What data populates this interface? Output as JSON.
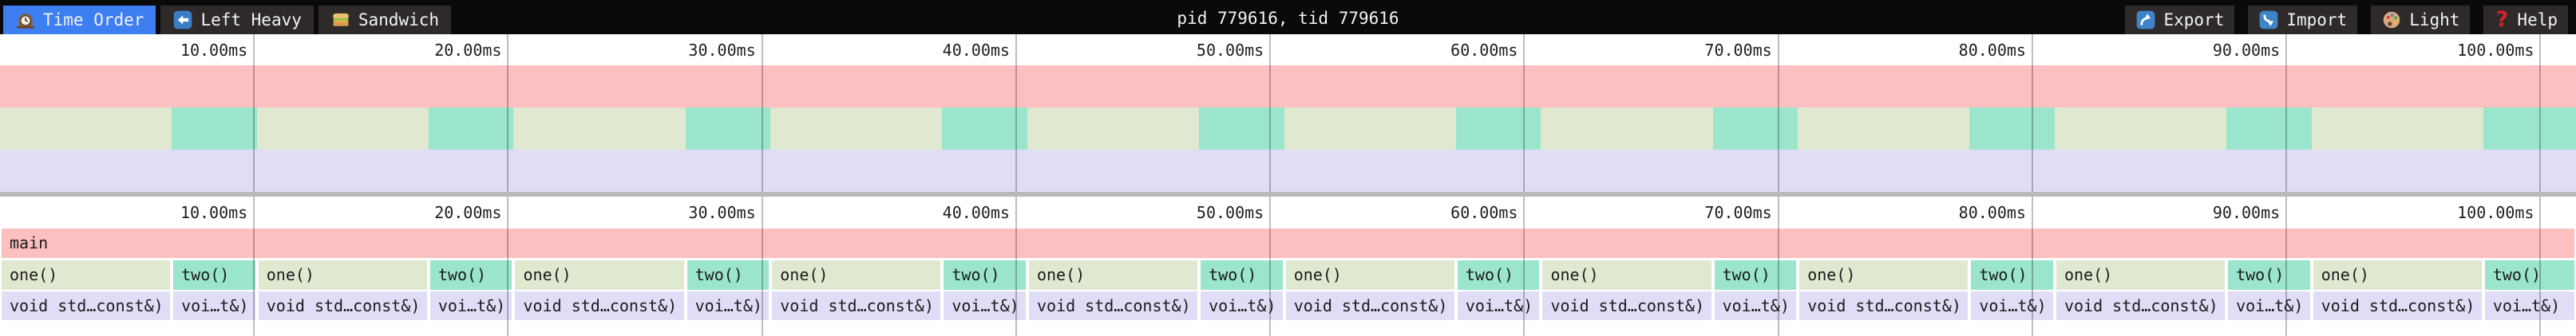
{
  "topbar": {
    "title": "pid 779616, tid 779616",
    "tabs": [
      {
        "label": "Time Order",
        "icon": "mantel-clock",
        "active": true
      },
      {
        "label": "Left Heavy",
        "icon": "left-arrow",
        "active": false
      },
      {
        "label": "Sandwich",
        "icon": "sandwich",
        "active": false
      }
    ],
    "actions": [
      {
        "label": "Export",
        "icon": "arrow-curving-up"
      },
      {
        "label": "Import",
        "icon": "arrow-curving-down"
      },
      {
        "label": "Light",
        "icon": "palette"
      },
      {
        "label": "Help",
        "icon": "question-mark"
      }
    ]
  },
  "colors": {
    "accent_blue": "#3d7ef0",
    "topbar_bg": "#0a0a0a",
    "button_bg": "#2e2a2a",
    "frame_main": "#fdc0c0",
    "frame_one": "#e0e9d0",
    "frame_two": "#9ae5cb",
    "frame_sleep": "#e0def7",
    "divider": "#b9b9b9",
    "gridline": "rgba(0,0,0,0.25)"
  },
  "chart_data": {
    "type": "flamegraph",
    "unit": "ms",
    "total_ms": 101.4,
    "ticks": [
      {
        "ms": 10,
        "label": "10.00ms"
      },
      {
        "ms": 20,
        "label": "20.00ms"
      },
      {
        "ms": 30,
        "label": "30.00ms"
      },
      {
        "ms": 40,
        "label": "40.00ms"
      },
      {
        "ms": 50,
        "label": "50.00ms"
      },
      {
        "ms": 60,
        "label": "60.00ms"
      },
      {
        "ms": 70,
        "label": "70.00ms"
      },
      {
        "ms": 80,
        "label": "80.00ms"
      },
      {
        "ms": 90,
        "label": "90.00ms"
      },
      {
        "ms": 100,
        "label": "100.00ms"
      }
    ],
    "levels": [
      {
        "depth": 0,
        "frames": [
          {
            "label": "main",
            "start_ms": 0,
            "end_ms": 101.4,
            "color_key": "frame_main"
          }
        ]
      },
      {
        "depth": 1,
        "frames": [
          {
            "label": "one()",
            "start_ms": 0,
            "end_ms": 6.76,
            "color_key": "frame_one"
          },
          {
            "label": "two()",
            "start_ms": 6.76,
            "end_ms": 10.11,
            "color_key": "frame_two"
          },
          {
            "label": "one()",
            "start_ms": 10.11,
            "end_ms": 16.87,
            "color_key": "frame_one"
          },
          {
            "label": "two()",
            "start_ms": 16.87,
            "end_ms": 20.22,
            "color_key": "frame_two"
          },
          {
            "label": "one()",
            "start_ms": 20.22,
            "end_ms": 26.98,
            "color_key": "frame_one"
          },
          {
            "label": "two()",
            "start_ms": 26.98,
            "end_ms": 30.33,
            "color_key": "frame_two"
          },
          {
            "label": "one()",
            "start_ms": 30.33,
            "end_ms": 37.09,
            "color_key": "frame_one"
          },
          {
            "label": "two()",
            "start_ms": 37.09,
            "end_ms": 40.44,
            "color_key": "frame_two"
          },
          {
            "label": "one()",
            "start_ms": 40.44,
            "end_ms": 47.2,
            "color_key": "frame_one"
          },
          {
            "label": "two()",
            "start_ms": 47.2,
            "end_ms": 50.55,
            "color_key": "frame_two"
          },
          {
            "label": "one()",
            "start_ms": 50.55,
            "end_ms": 57.31,
            "color_key": "frame_one"
          },
          {
            "label": "two()",
            "start_ms": 57.31,
            "end_ms": 60.66,
            "color_key": "frame_two"
          },
          {
            "label": "one()",
            "start_ms": 60.66,
            "end_ms": 67.42,
            "color_key": "frame_one"
          },
          {
            "label": "two()",
            "start_ms": 67.42,
            "end_ms": 70.77,
            "color_key": "frame_two"
          },
          {
            "label": "one()",
            "start_ms": 70.77,
            "end_ms": 77.53,
            "color_key": "frame_one"
          },
          {
            "label": "two()",
            "start_ms": 77.53,
            "end_ms": 80.88,
            "color_key": "frame_two"
          },
          {
            "label": "one()",
            "start_ms": 80.88,
            "end_ms": 87.64,
            "color_key": "frame_one"
          },
          {
            "label": "two()",
            "start_ms": 87.64,
            "end_ms": 90.99,
            "color_key": "frame_two"
          },
          {
            "label": "one()",
            "start_ms": 90.99,
            "end_ms": 97.75,
            "color_key": "frame_one"
          },
          {
            "label": "two()",
            "start_ms": 97.75,
            "end_ms": 101.4,
            "color_key": "frame_two"
          }
        ]
      },
      {
        "depth": 2,
        "frames": [
          {
            "label": "void std…const&)",
            "start_ms": 0,
            "end_ms": 6.76,
            "color_key": "frame_sleep"
          },
          {
            "label": "voi…t&)",
            "start_ms": 6.76,
            "end_ms": 10.11,
            "color_key": "frame_sleep"
          },
          {
            "label": "void std…const&)",
            "start_ms": 10.11,
            "end_ms": 16.87,
            "color_key": "frame_sleep"
          },
          {
            "label": "voi…t&)",
            "start_ms": 16.87,
            "end_ms": 20.22,
            "color_key": "frame_sleep"
          },
          {
            "label": "void std…const&)",
            "start_ms": 20.22,
            "end_ms": 26.98,
            "color_key": "frame_sleep"
          },
          {
            "label": "voi…t&)",
            "start_ms": 26.98,
            "end_ms": 30.33,
            "color_key": "frame_sleep"
          },
          {
            "label": "void std…const&)",
            "start_ms": 30.33,
            "end_ms": 37.09,
            "color_key": "frame_sleep"
          },
          {
            "label": "voi…t&)",
            "start_ms": 37.09,
            "end_ms": 40.44,
            "color_key": "frame_sleep"
          },
          {
            "label": "void std…const&)",
            "start_ms": 40.44,
            "end_ms": 47.2,
            "color_key": "frame_sleep"
          },
          {
            "label": "voi…t&)",
            "start_ms": 47.2,
            "end_ms": 50.55,
            "color_key": "frame_sleep"
          },
          {
            "label": "void std…const&)",
            "start_ms": 50.55,
            "end_ms": 57.31,
            "color_key": "frame_sleep"
          },
          {
            "label": "voi…t&)",
            "start_ms": 57.31,
            "end_ms": 60.66,
            "color_key": "frame_sleep"
          },
          {
            "label": "void std…const&)",
            "start_ms": 60.66,
            "end_ms": 67.42,
            "color_key": "frame_sleep"
          },
          {
            "label": "voi…t&)",
            "start_ms": 67.42,
            "end_ms": 70.77,
            "color_key": "frame_sleep"
          },
          {
            "label": "void std…const&)",
            "start_ms": 70.77,
            "end_ms": 77.53,
            "color_key": "frame_sleep"
          },
          {
            "label": "voi…t&)",
            "start_ms": 77.53,
            "end_ms": 80.88,
            "color_key": "frame_sleep"
          },
          {
            "label": "void std…const&)",
            "start_ms": 80.88,
            "end_ms": 87.64,
            "color_key": "frame_sleep"
          },
          {
            "label": "voi…t&)",
            "start_ms": 87.64,
            "end_ms": 90.99,
            "color_key": "frame_sleep"
          },
          {
            "label": "void std…const&)",
            "start_ms": 90.99,
            "end_ms": 97.75,
            "color_key": "frame_sleep"
          },
          {
            "label": "voi…t&)",
            "start_ms": 97.75,
            "end_ms": 101.4,
            "color_key": "frame_sleep"
          }
        ]
      }
    ]
  }
}
